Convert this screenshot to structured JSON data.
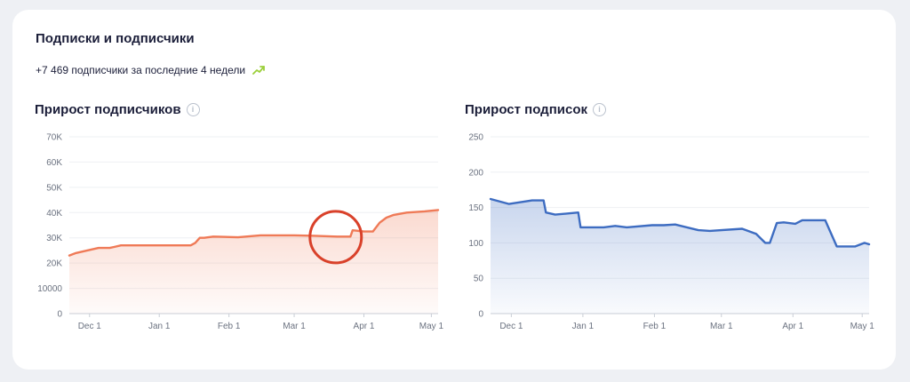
{
  "header": {
    "title": "Подписки и подписчики",
    "summary": "+7 469 подписчики за последние 4 недели",
    "trend_icon": "trend-up-arrow-icon",
    "trend_color": "#9bcf3a"
  },
  "chart_data": [
    {
      "type": "area",
      "title": "Прирост подписчиков",
      "info_icon": "info-icon",
      "color": "#ef7a57",
      "ylim": [
        0,
        70000
      ],
      "y_ticks": [
        0,
        10000,
        20000,
        30000,
        40000,
        50000,
        60000,
        70000
      ],
      "y_tick_labels": [
        "0",
        "10000",
        "20K",
        "30K",
        "40K",
        "50K",
        "60K",
        "70K"
      ],
      "x_ticks": [
        "Dec 1",
        "Jan 1",
        "Feb 1",
        "Mar 1",
        "Apr 1",
        "May 1"
      ],
      "x_tick_dates": [
        "2023-12-01",
        "2024-01-01",
        "2024-02-01",
        "2024-03-01",
        "2024-04-01",
        "2024-05-01"
      ],
      "grid": true,
      "annotation": {
        "type": "circle",
        "color": "#d9412a",
        "date": "2024-03-25"
      },
      "series": [
        {
          "x": [
            "2023-11-22",
            "2023-11-25",
            "2023-11-30",
            "2023-12-05",
            "2023-12-10",
            "2023-12-15",
            "2023-12-20",
            "2023-12-30",
            "2024-01-05",
            "2024-01-15",
            "2024-01-17",
            "2024-01-19",
            "2024-01-21",
            "2024-01-25",
            "2024-02-05",
            "2024-02-15",
            "2024-02-20",
            "2024-03-01",
            "2024-03-10",
            "2024-03-20",
            "2024-03-26",
            "2024-03-27",
            "2024-04-01",
            "2024-04-05",
            "2024-04-08",
            "2024-04-11",
            "2024-04-14",
            "2024-04-20",
            "2024-04-28",
            "2024-05-04"
          ],
          "values": [
            23000,
            24000,
            25000,
            26000,
            26000,
            27000,
            27000,
            27000,
            27000,
            27000,
            28000,
            30000,
            30000,
            30500,
            30200,
            31000,
            31000,
            31000,
            30800,
            30500,
            30500,
            33000,
            32500,
            32500,
            36000,
            38000,
            39000,
            40000,
            40500,
            41000
          ]
        }
      ]
    },
    {
      "type": "area",
      "title": "Прирост подписок",
      "info_icon": "info-icon",
      "color": "#3d6cc1",
      "ylim": [
        0,
        250
      ],
      "y_ticks": [
        0,
        50,
        100,
        150,
        200,
        250
      ],
      "y_tick_labels": [
        "0",
        "50",
        "100",
        "150",
        "200",
        "250"
      ],
      "x_ticks": [
        "Dec 1",
        "Jan 1",
        "Feb 1",
        "Mar 1",
        "Apr 1",
        "May 1"
      ],
      "x_tick_dates": [
        "2023-12-01",
        "2024-01-01",
        "2024-02-01",
        "2024-03-01",
        "2024-04-01",
        "2024-05-01"
      ],
      "grid": true,
      "series": [
        {
          "x": [
            "2023-11-22",
            "2023-11-30",
            "2023-12-10",
            "2023-12-15",
            "2023-12-16",
            "2023-12-20",
            "2023-12-30",
            "2023-12-31",
            "2024-01-10",
            "2024-01-15",
            "2024-01-20",
            "2024-01-31",
            "2024-02-05",
            "2024-02-10",
            "2024-02-20",
            "2024-02-25",
            "2024-03-10",
            "2024-03-15",
            "2024-03-16",
            "2024-03-20",
            "2024-03-22",
            "2024-03-25",
            "2024-03-28",
            "2024-04-02",
            "2024-04-05",
            "2024-04-15",
            "2024-04-20",
            "2024-04-28",
            "2024-05-02",
            "2024-05-04"
          ],
          "values": [
            162,
            155,
            160,
            160,
            143,
            140,
            143,
            122,
            122,
            124,
            122,
            125,
            125,
            126,
            118,
            117,
            120,
            114,
            113,
            100,
            100,
            128,
            129,
            127,
            132,
            132,
            95,
            95,
            100,
            98
          ]
        }
      ]
    }
  ]
}
